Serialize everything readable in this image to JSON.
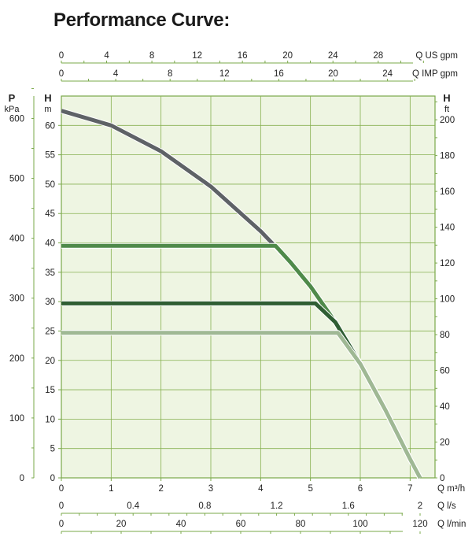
{
  "title": "Performance Curve:",
  "colors": {
    "axis": "#7aa84a",
    "grid": "#86b050",
    "plot_bg": "#eef5e2",
    "main_curve": "#5e6266",
    "curve_40": "#4f8a4a",
    "curve_30": "#2f5e33",
    "curve_25": "#9fb894",
    "outline": "#ffffff"
  },
  "chart_data": {
    "type": "line",
    "title": "Performance Curve:",
    "x_primary": {
      "label": "Q m³/h",
      "range": [
        0,
        7.5
      ],
      "ticks": [
        0,
        1,
        2,
        3,
        4,
        5,
        6,
        7
      ]
    },
    "y_primary": {
      "label": "H",
      "unit": "m",
      "range": [
        0,
        65
      ],
      "ticks": [
        0,
        5,
        10,
        15,
        20,
        25,
        30,
        35,
        40,
        45,
        50,
        55,
        60
      ]
    },
    "axes_extra": {
      "kpa": {
        "label": "P",
        "unit": "kPa",
        "ticks": [
          0,
          100,
          200,
          300,
          400,
          500,
          600
        ]
      },
      "ft": {
        "label": "H",
        "unit": "ft",
        "ticks": [
          0,
          20,
          40,
          60,
          80,
          100,
          120,
          140,
          160,
          180,
          200
        ]
      },
      "us_gpm": {
        "label": "Q US gpm",
        "ticks": [
          0,
          4,
          8,
          12,
          16,
          20,
          24,
          28
        ]
      },
      "imp_gpm": {
        "label": "Q IMP gpm",
        "ticks": [
          0,
          4,
          8,
          12,
          16,
          20,
          24
        ]
      },
      "ls": {
        "label": "Q l/s",
        "ticks": [
          "0",
          "0.4",
          "0.8",
          "1.2",
          "1.6",
          "2"
        ]
      },
      "lmin": {
        "label": "Q l/min",
        "ticks": [
          0,
          20,
          40,
          60,
          80,
          100,
          120
        ]
      }
    },
    "grid": true,
    "series": [
      {
        "x": [
          0,
          1,
          2,
          3,
          4,
          4.6,
          5,
          5.5,
          6,
          6.5,
          7,
          7.2
        ],
        "y": [
          62.5,
          60,
          55.6,
          49.6,
          42,
          36.7,
          32.6,
          26.5,
          19.4,
          11.6,
          3.2,
          0
        ]
      },
      {
        "x": [
          0,
          4.3
        ],
        "y": [
          39.5,
          39.5
        ]
      },
      {
        "x": [
          0,
          5.1
        ],
        "y": [
          29.7,
          29.7
        ]
      },
      {
        "x": [
          0,
          5.55
        ],
        "y": [
          24.7,
          24.7
        ]
      }
    ]
  }
}
